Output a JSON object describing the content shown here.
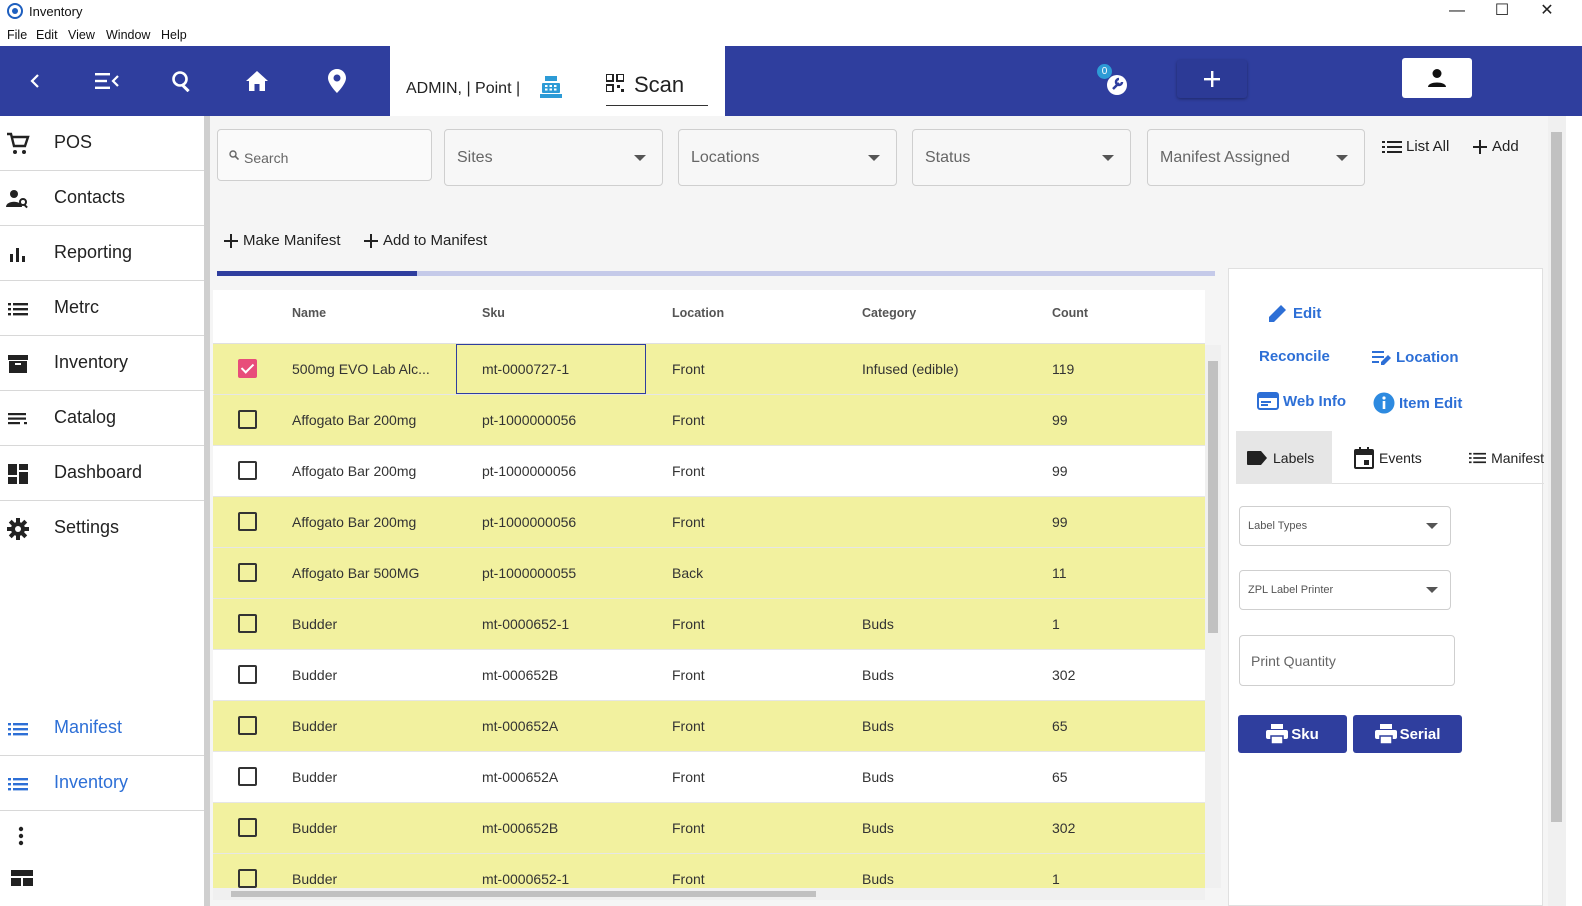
{
  "window": {
    "title": "Inventory",
    "controls": [
      "—",
      "☐",
      "✕"
    ]
  },
  "menu": [
    "File",
    "Edit",
    "View",
    "Window",
    "Help"
  ],
  "topnav": {
    "user_label": "ADMIN, | Point |",
    "scan_label": "Scan",
    "notification_count": "0"
  },
  "sidebar": {
    "items": [
      {
        "label": "POS",
        "icon": "cart-icon"
      },
      {
        "label": "Contacts",
        "icon": "contacts-icon"
      },
      {
        "label": "Reporting",
        "icon": "bar-chart-icon"
      },
      {
        "label": "Metrc",
        "icon": "list-icon"
      },
      {
        "label": "Inventory",
        "icon": "archive-icon"
      },
      {
        "label": "Catalog",
        "icon": "catalog-icon"
      },
      {
        "label": "Dashboard",
        "icon": "dashboard-icon"
      },
      {
        "label": "Settings",
        "icon": "gear-icon"
      }
    ],
    "bottom_items": [
      {
        "label": "Manifest",
        "icon": "list-icon"
      },
      {
        "label": "Inventory",
        "icon": "list-icon"
      }
    ]
  },
  "filters": {
    "search_placeholder": "Search",
    "sites": "Sites",
    "locations": "Locations",
    "status": "Status",
    "manifest_assigned": "Manifest Assigned",
    "list_all": "List All",
    "add": "Add",
    "make_manifest": "Make Manifest",
    "add_to_manifest": "Add to Manifest"
  },
  "progress": {
    "fraction": 0.2
  },
  "table": {
    "columns": [
      "Name",
      "Sku",
      "Location",
      "Category",
      "Count"
    ],
    "rows": [
      {
        "checked": true,
        "name": "500mg EVO Lab Alc...",
        "sku": "mt-0000727-1",
        "location": "Front",
        "category": "Infused (edible)",
        "count": "119",
        "highlight": true
      },
      {
        "checked": false,
        "name": "Affogato Bar 200mg",
        "sku": "pt-1000000056",
        "location": "Front",
        "category": "",
        "count": "99",
        "highlight": true
      },
      {
        "checked": false,
        "name": "Affogato Bar 200mg",
        "sku": "pt-1000000056",
        "location": "Front",
        "category": "",
        "count": "99",
        "highlight": false
      },
      {
        "checked": false,
        "name": "Affogato Bar 200mg",
        "sku": "pt-1000000056",
        "location": "Front",
        "category": "",
        "count": "99",
        "highlight": true
      },
      {
        "checked": false,
        "name": "Affogato Bar 500MG",
        "sku": "pt-1000000055",
        "location": "Back",
        "category": "",
        "count": "11",
        "highlight": true
      },
      {
        "checked": false,
        "name": "Budder",
        "sku": "mt-0000652-1",
        "location": "Front",
        "category": "Buds",
        "count": "1",
        "highlight": true
      },
      {
        "checked": false,
        "name": "Budder",
        "sku": "mt-000652B",
        "location": "Front",
        "category": "Buds",
        "count": "302",
        "highlight": false
      },
      {
        "checked": false,
        "name": "Budder",
        "sku": "mt-000652A",
        "location": "Front",
        "category": "Buds",
        "count": "65",
        "highlight": true
      },
      {
        "checked": false,
        "name": "Budder",
        "sku": "mt-000652A",
        "location": "Front",
        "category": "Buds",
        "count": "65",
        "highlight": false
      },
      {
        "checked": false,
        "name": "Budder",
        "sku": "mt-000652B",
        "location": "Front",
        "category": "Buds",
        "count": "302",
        "highlight": true
      },
      {
        "checked": false,
        "name": "Budder",
        "sku": "mt-0000652-1",
        "location": "Front",
        "category": "Buds",
        "count": "1",
        "highlight": true
      }
    ]
  },
  "panel": {
    "edit": "Edit",
    "reconcile": "Reconcile",
    "location": "Location",
    "web_info": "Web Info",
    "item_edit": "Item Edit",
    "tabs": [
      "Labels",
      "Events",
      "Manifest"
    ],
    "label_types": "Label Types",
    "printer": "ZPL Label Printer",
    "print_quantity": "Print Quantity",
    "sku_button": "Sku",
    "serial_button": "Serial"
  },
  "colors": {
    "primary": "#2f3e9e",
    "accent_blue": "#2d6fd6",
    "row_highlight": "#f2f19f",
    "checkbox": "#e84d7a"
  }
}
